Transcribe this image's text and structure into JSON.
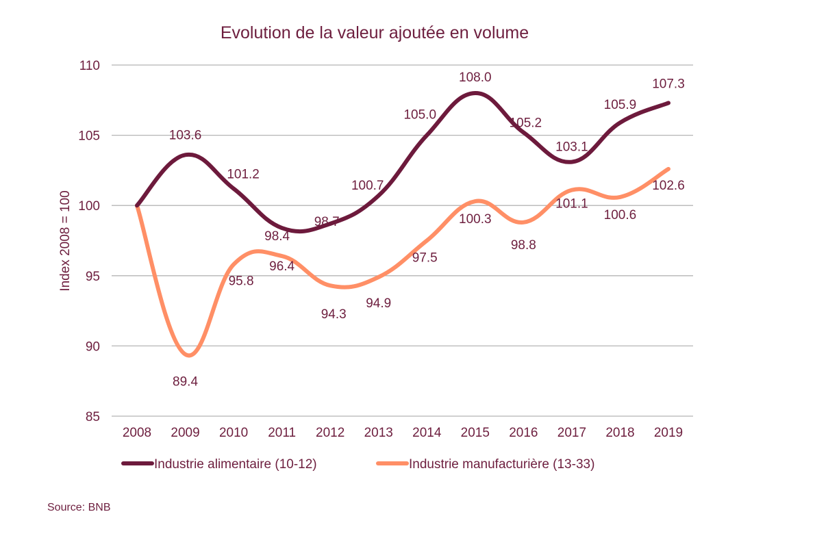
{
  "chart_data": {
    "type": "line",
    "title": "Evolution de la valeur ajoutée en volume",
    "xlabel": "",
    "ylabel": "Index 2008 = 100",
    "ylim": [
      85,
      110
    ],
    "yticks": [
      85,
      90,
      95,
      100,
      105,
      110
    ],
    "ytick_labels": [
      "85",
      "90",
      "95",
      "100",
      "105",
      "110"
    ],
    "grid": true,
    "smooth": true,
    "categories": [
      "2008",
      "2009",
      "2010",
      "2011",
      "2012",
      "2013",
      "2014",
      "2015",
      "2016",
      "2017",
      "2018",
      "2019"
    ],
    "series": [
      {
        "name": "Industrie alimentaire (10-12)",
        "color": "#6d1a3c",
        "values": [
          100,
          103.6,
          101.2,
          98.4,
          98.7,
          100.7,
          105.0,
          108.0,
          105.2,
          103.1,
          105.9,
          107.3
        ],
        "labels": [
          "",
          "103.6",
          "101.2",
          "98.4",
          "98.7",
          "100.7",
          "105.0",
          "108.0",
          "105.2",
          "103.1",
          "105.9",
          "107.3"
        ]
      },
      {
        "name": "Industrie manufacturière (13-33)",
        "color": "#ff8f66",
        "values": [
          100,
          89.4,
          95.8,
          96.4,
          94.3,
          94.9,
          97.5,
          100.3,
          98.8,
          101.1,
          100.6,
          102.6
        ],
        "labels": [
          "",
          "89.4",
          "95.8",
          "96.4",
          "94.3",
          "94.9",
          "97.5",
          "100.3",
          "98.8",
          "101.1",
          "100.6",
          "102.6"
        ]
      }
    ],
    "legend_position": "bottom"
  },
  "source": "Source: BNB"
}
